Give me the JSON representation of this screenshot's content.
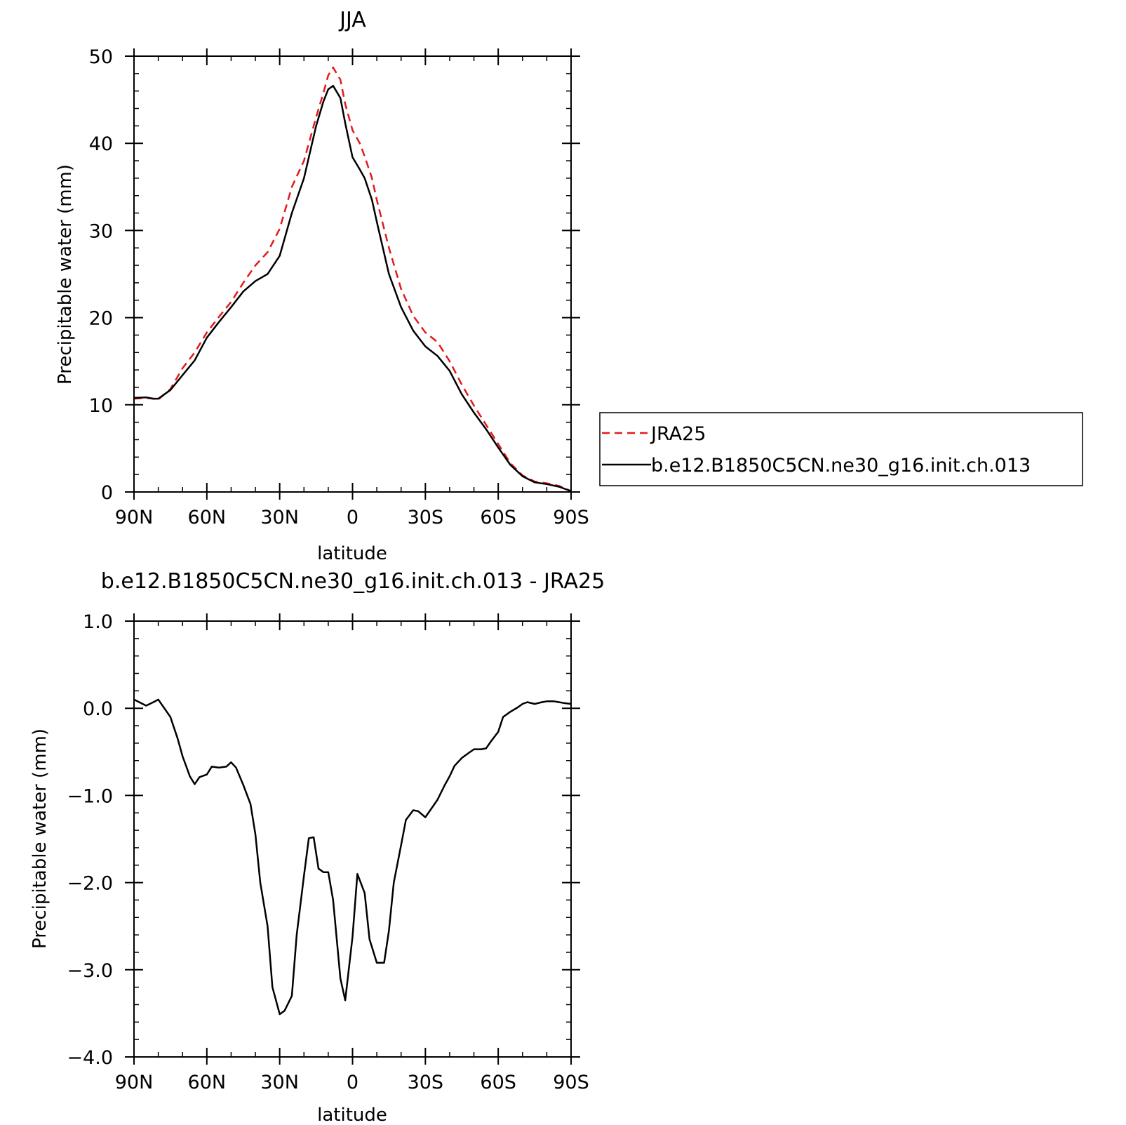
{
  "chart_data": [
    {
      "type": "line",
      "title": "JJA",
      "xlabel": "latitude",
      "ylabel": "Precipitable water (mm)",
      "xlim": [
        90,
        -90
      ],
      "ylim": [
        0,
        50
      ],
      "xticks": [
        {
          "value": 90,
          "label": "90N"
        },
        {
          "value": 60,
          "label": "60N"
        },
        {
          "value": 30,
          "label": "30N"
        },
        {
          "value": 0,
          "label": "0"
        },
        {
          "value": -30,
          "label": "30S"
        },
        {
          "value": -60,
          "label": "60S"
        },
        {
          "value": -90,
          "label": "90S"
        }
      ],
      "yticks": [
        {
          "value": 0,
          "label": "0"
        },
        {
          "value": 10,
          "label": "10"
        },
        {
          "value": 20,
          "label": "20"
        },
        {
          "value": 30,
          "label": "30"
        },
        {
          "value": 40,
          "label": "40"
        },
        {
          "value": 50,
          "label": "50"
        }
      ],
      "legend_position": "right",
      "series": [
        {
          "name": "JRA25",
          "color": "#e31a1c",
          "dash": "dashed",
          "x": [
            90,
            85,
            82,
            80,
            75,
            70,
            65,
            60,
            55,
            50,
            45,
            40,
            35,
            30,
            25,
            20,
            15,
            12,
            10,
            8,
            5,
            3,
            0,
            -3,
            -5,
            -8,
            -10,
            -15,
            -20,
            -25,
            -30,
            -35,
            -40,
            -45,
            -50,
            -55,
            -60,
            -65,
            -70,
            -75,
            -80,
            -85,
            -90
          ],
          "values": [
            10.7,
            10.8,
            10.7,
            10.6,
            11.8,
            14.2,
            16.0,
            18.3,
            20.1,
            21.8,
            24.0,
            26.0,
            27.5,
            30.2,
            35.0,
            38.0,
            43.0,
            45.8,
            47.8,
            48.7,
            47.3,
            44.5,
            41.5,
            40.0,
            38.5,
            36.0,
            33.5,
            28.0,
            23.3,
            20.2,
            18.3,
            17.2,
            15.0,
            12.3,
            9.9,
            7.7,
            5.5,
            3.3,
            1.9,
            1.2,
            1.0,
            0.7,
            0.1
          ]
        },
        {
          "name": "b.e12.B1850C5CN.ne30_g16.init.ch.013",
          "color": "#000000",
          "dash": "solid",
          "x": [
            90,
            85,
            82,
            80,
            75,
            70,
            65,
            60,
            55,
            50,
            45,
            40,
            35,
            30,
            25,
            20,
            15,
            12,
            10,
            8,
            5,
            3,
            0,
            -3,
            -5,
            -8,
            -10,
            -15,
            -20,
            -25,
            -30,
            -35,
            -40,
            -45,
            -50,
            -55,
            -60,
            -65,
            -70,
            -75,
            -80,
            -85,
            -90
          ],
          "values": [
            10.8,
            10.85,
            10.7,
            10.7,
            11.7,
            13.4,
            15.1,
            17.7,
            19.5,
            21.2,
            23.0,
            24.2,
            25.0,
            27.1,
            32.0,
            36.0,
            42.0,
            44.8,
            46.2,
            46.6,
            45.2,
            42.3,
            38.4,
            37.0,
            36.0,
            33.5,
            31.0,
            25.0,
            21.2,
            18.5,
            16.7,
            15.6,
            13.9,
            11.2,
            9.1,
            7.2,
            5.1,
            3.1,
            1.8,
            1.1,
            0.9,
            0.6,
            0.1
          ]
        }
      ]
    },
    {
      "type": "line",
      "title": "b.e12.B1850C5CN.ne30_g16.init.ch.013 - JRA25",
      "xlabel": "latitude",
      "ylabel": "Precipitable water (mm)",
      "xlim": [
        90,
        -90
      ],
      "ylim": [
        -4.0,
        1.0
      ],
      "xticks": [
        {
          "value": 90,
          "label": "90N"
        },
        {
          "value": 60,
          "label": "60N"
        },
        {
          "value": 30,
          "label": "30N"
        },
        {
          "value": 0,
          "label": "0"
        },
        {
          "value": -30,
          "label": "30S"
        },
        {
          "value": -60,
          "label": "60S"
        },
        {
          "value": -90,
          "label": "90S"
        }
      ],
      "yticks": [
        {
          "value": 1.0,
          "label": "1.0"
        },
        {
          "value": 0.0,
          "label": "0.0"
        },
        {
          "value": -1.0,
          "label": "-1.0"
        },
        {
          "value": -2.0,
          "label": "-2.0"
        },
        {
          "value": -3.0,
          "label": "-3.0"
        },
        {
          "value": -4.0,
          "label": "-4.0"
        }
      ],
      "series": [
        {
          "color": "#000000",
          "dash": "solid",
          "x": [
            90,
            85,
            82,
            80,
            75,
            72,
            70,
            67,
            65,
            63,
            60,
            58,
            55,
            52,
            50,
            48,
            45,
            42,
            40,
            38,
            35,
            33,
            30,
            28,
            25,
            23,
            20,
            18,
            16,
            14,
            12,
            10,
            8,
            5,
            3,
            0,
            -2,
            -5,
            -7,
            -10,
            -13,
            -15,
            -17,
            -20,
            -22,
            -25,
            -27,
            -30,
            -35,
            -38,
            -40,
            -42,
            -45,
            -48,
            -50,
            -53,
            -55,
            -57,
            -60,
            -62,
            -65,
            -68,
            -70,
            -72,
            -75,
            -78,
            -80,
            -83,
            -85,
            -87,
            -90
          ],
          "values": [
            0.1,
            0.03,
            0.07,
            0.1,
            -0.1,
            -0.35,
            -0.55,
            -0.78,
            -0.87,
            -0.79,
            -0.76,
            -0.67,
            -0.68,
            -0.67,
            -0.62,
            -0.68,
            -0.88,
            -1.1,
            -1.45,
            -2.0,
            -2.5,
            -3.2,
            -3.51,
            -3.47,
            -3.3,
            -2.6,
            -1.92,
            -1.49,
            -1.48,
            -1.84,
            -1.88,
            -1.88,
            -2.2,
            -3.1,
            -3.35,
            -2.62,
            -1.9,
            -2.12,
            -2.65,
            -2.92,
            -2.92,
            -2.55,
            -2.0,
            -1.57,
            -1.28,
            -1.17,
            -1.18,
            -1.25,
            -1.05,
            -0.88,
            -0.78,
            -0.66,
            -0.57,
            -0.51,
            -0.47,
            -0.47,
            -0.46,
            -0.38,
            -0.27,
            -0.1,
            -0.04,
            0.01,
            0.05,
            0.07,
            0.05,
            0.07,
            0.08,
            0.08,
            0.07,
            0.06,
            0.05
          ]
        }
      ]
    }
  ]
}
